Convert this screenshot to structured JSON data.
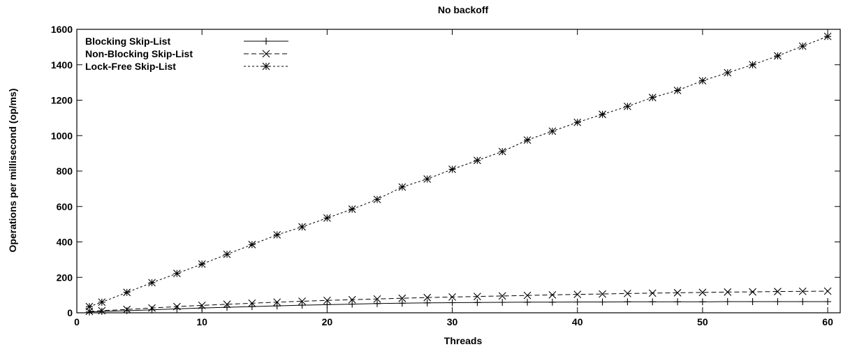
{
  "chart_data": {
    "type": "line",
    "title": "No backoff",
    "xlabel": "Threads",
    "ylabel": "Operations per millisecond (op/ms)",
    "xlim": [
      0,
      61
    ],
    "ylim": [
      0,
      1600
    ],
    "x_ticks": [
      0,
      10,
      20,
      30,
      40,
      50,
      60
    ],
    "y_ticks": [
      0,
      200,
      400,
      600,
      800,
      1000,
      1200,
      1400,
      1600
    ],
    "x": [
      1,
      2,
      4,
      6,
      8,
      10,
      12,
      14,
      16,
      18,
      20,
      22,
      24,
      26,
      28,
      30,
      32,
      34,
      36,
      38,
      40,
      42,
      44,
      46,
      48,
      50,
      52,
      54,
      56,
      58,
      60
    ],
    "legend_position": "top-left",
    "grid": false,
    "series": [
      {
        "name": "Blocking Skip-List",
        "marker": "plus",
        "dash": "solid",
        "values": [
          5,
          8,
          12,
          17,
          22,
          27,
          31,
          35,
          39,
          43,
          46,
          49,
          52,
          54,
          56,
          57,
          58,
          59,
          60,
          60,
          61,
          61,
          62,
          62,
          62,
          62,
          63,
          63,
          63,
          63,
          63
        ]
      },
      {
        "name": "Non-Blocking Skip-List",
        "marker": "x",
        "dash": "dashed",
        "values": [
          8,
          12,
          19,
          27,
          35,
          42,
          48,
          54,
          60,
          65,
          70,
          74,
          78,
          82,
          86,
          89,
          92,
          95,
          98,
          101,
          104,
          106,
          109,
          111,
          113,
          115,
          117,
          118,
          120,
          121,
          122
        ]
      },
      {
        "name": "Lock-Free Skip-List",
        "marker": "star",
        "dash": "dotted",
        "values": [
          35,
          60,
          115,
          170,
          222,
          275,
          330,
          385,
          440,
          485,
          535,
          585,
          640,
          710,
          755,
          810,
          860,
          910,
          975,
          1025,
          1075,
          1120,
          1165,
          1215,
          1255,
          1310,
          1355,
          1400,
          1450,
          1505,
          1560
        ]
      }
    ]
  }
}
